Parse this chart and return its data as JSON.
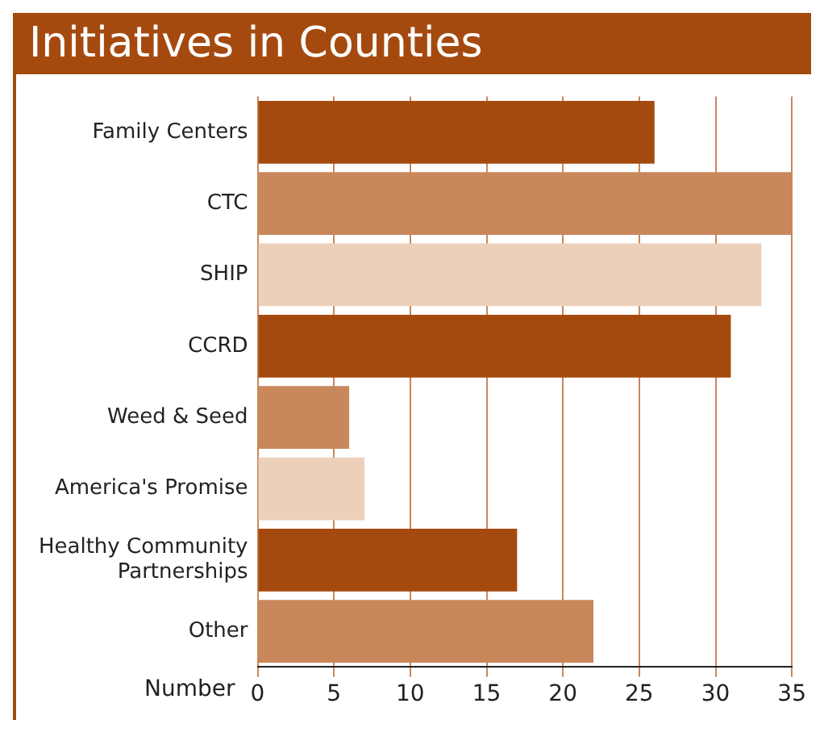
{
  "chart_data": {
    "type": "bar",
    "title": "Initiatives in Counties",
    "xlabel": "Number",
    "orientation": "horizontal",
    "categories": [
      "Family Centers",
      "CTC",
      "SHIP",
      "CCRD",
      "Weed & Seed",
      "America's Promise",
      "Healthy Community Partnerships",
      "Other"
    ],
    "values": [
      26,
      35,
      33,
      31,
      6,
      7,
      17,
      22
    ],
    "colors": [
      "#a54a0f",
      "#c8885c",
      "#ecd0ba",
      "#a54a0f",
      "#c8885c",
      "#ecd0ba",
      "#a54a0f",
      "#c8885c"
    ],
    "xlim": [
      0,
      35
    ],
    "xticks": [
      0,
      5,
      10,
      15,
      20,
      25,
      30,
      35
    ],
    "grid": "x",
    "legend": false
  }
}
